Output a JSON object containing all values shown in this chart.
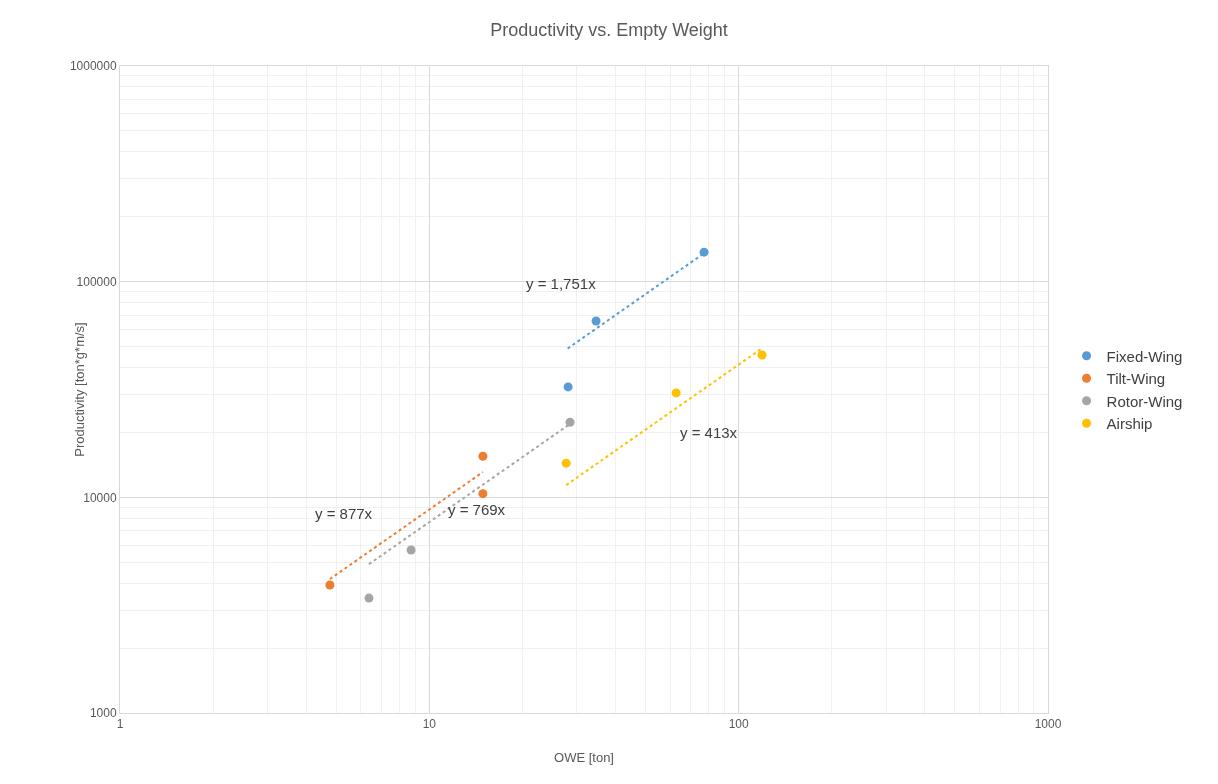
{
  "chart_data": {
    "type": "scatter",
    "title": "Productivity vs. Empty Weight",
    "xlabel": "OWE [ton]",
    "ylabel": "Productivity [ton*g*m/s]",
    "log": "xy",
    "xlim": [
      1,
      1000
    ],
    "xticks": [
      1,
      10,
      100,
      1000
    ],
    "ylim": [
      1000,
      1000000
    ],
    "yticks": [
      1000,
      10000,
      100000,
      1000000
    ],
    "grid": true,
    "legend": "right",
    "marker": "circle",
    "series": [
      {
        "name": "Fixed-Wing",
        "color": "#5b9bd5",
        "x": [
          34.6,
          77.3,
          28.1
        ],
        "values": [
          65700,
          137000,
          32500
        ]
      },
      {
        "name": "Tilt-Wing",
        "color": "#ed7d31",
        "x": [
          4.77,
          14.9,
          14.9
        ],
        "values": [
          3920,
          15500,
          10400
        ]
      },
      {
        "name": "Rotor-Wing",
        "color": "#a5a5a5",
        "x": [
          6.38,
          8.73,
          28.5
        ],
        "values": [
          3410,
          5700,
          22300
        ]
      },
      {
        "name": "Airship",
        "color": "#ffc000",
        "x": [
          27.7,
          62.8,
          119
        ],
        "values": [
          14400,
          30500,
          45700
        ]
      },
      {
        "type": "line",
        "line_style": "dotted",
        "marker": "none",
        "color": "#5b9bd5",
        "x": [
          28,
          77.3
        ],
        "values": [
          49000,
          135400
        ]
      },
      {
        "type": "line",
        "line_style": "dotted",
        "marker": "none",
        "color": "#ed7d31",
        "x": [
          4.77,
          14.9
        ],
        "values": [
          4180,
          13100
        ]
      },
      {
        "type": "line",
        "line_style": "dotted",
        "marker": "none",
        "color": "#a5a5a5",
        "x": [
          6.38,
          28.5
        ],
        "values": [
          4900,
          21900
        ]
      },
      {
        "type": "line",
        "line_style": "dotted",
        "marker": "none",
        "color": "#ffc000",
        "x": [
          27.7,
          119
        ],
        "values": [
          11400,
          49100
        ]
      }
    ],
    "annotations": [
      "y = 1,751x",
      "y = 413x",
      "y = 877x",
      "y = 769x"
    ]
  }
}
